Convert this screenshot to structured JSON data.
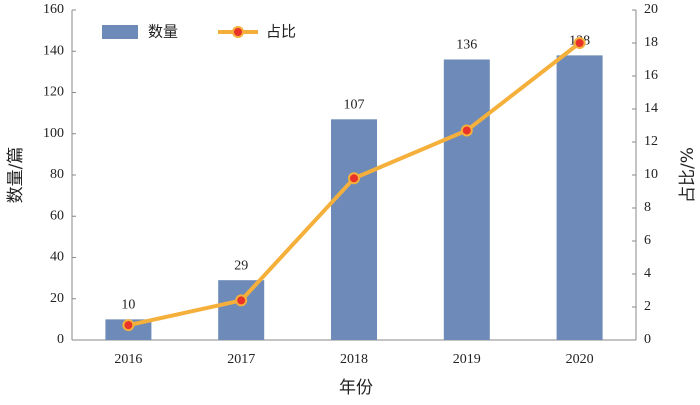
{
  "chart_data": {
    "type": "bar_line",
    "categories": [
      "2016",
      "2017",
      "2018",
      "2019",
      "2020"
    ],
    "series": [
      {
        "name": "数量",
        "type": "bar",
        "color": "#6d8ab8",
        "values": [
          10,
          29,
          107,
          136,
          138
        ]
      },
      {
        "name": "占比",
        "type": "line",
        "axis": "y2",
        "color": "#f5b03c",
        "marker_color": "#e8322a",
        "values": [
          0.9,
          2.4,
          9.8,
          12.7,
          18.0
        ]
      }
    ],
    "xlabel": "年份",
    "ylabel": "数量/篇",
    "y2label": "占比/%",
    "ylim": [
      0,
      160
    ],
    "yticks": [
      0,
      20,
      40,
      60,
      80,
      100,
      120,
      140,
      160
    ],
    "y2lim": [
      0,
      20
    ],
    "y2ticks": [
      0,
      2,
      4,
      6,
      8,
      10,
      12,
      14,
      16,
      18,
      20
    ],
    "legend": "upper left",
    "grid": false
  }
}
